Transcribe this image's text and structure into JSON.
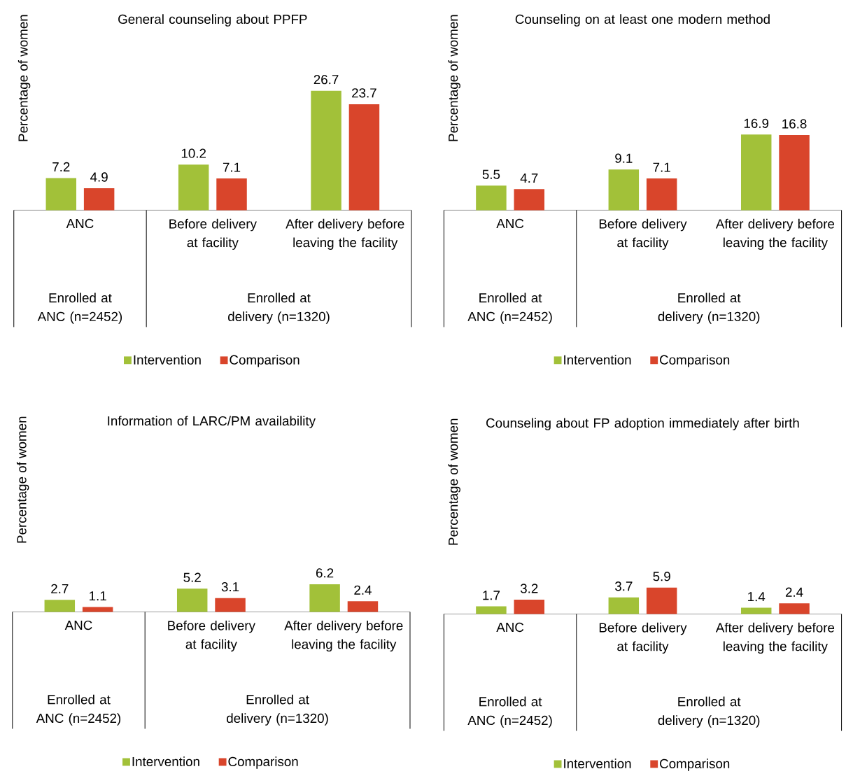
{
  "chart_data": [
    {
      "type": "bar",
      "title": "General counseling about PPFP",
      "ylabel": "Percentage of women",
      "categories": [
        "ANC",
        "Before delivery at facility",
        "After delivery before leaving the facility"
      ],
      "series": [
        {
          "name": "Intervention",
          "color": "#a2c139",
          "values": [
            7.2,
            10.2,
            26.7
          ]
        },
        {
          "name": "Comparison",
          "color": "#d9452b",
          "values": [
            4.9,
            7.1,
            23.7
          ]
        }
      ],
      "data_labels": true,
      "legend": "bottom",
      "annotations": [
        "Enrolled at ANC (n=2452)",
        "Enrolled at delivery (n=1320)"
      ]
    },
    {
      "type": "bar",
      "title": "Counseling on at least one modern method",
      "ylabel": "Percentage of women",
      "categories": [
        "ANC",
        "Before delivery at facility",
        "After delivery before leaving the facility"
      ],
      "series": [
        {
          "name": "Intervention",
          "color": "#a2c139",
          "values": [
            5.5,
            9.1,
            16.9
          ]
        },
        {
          "name": "Comparison",
          "color": "#d9452b",
          "values": [
            4.7,
            7.1,
            16.8
          ]
        }
      ],
      "data_labels": true,
      "legend": "bottom",
      "annotations": [
        "Enrolled at ANC (n=2452)",
        "Enrolled at delivery (n=1320)"
      ]
    },
    {
      "type": "bar",
      "title": "Information of LARC/PM availability",
      "ylabel": "Percentage of women",
      "categories": [
        "ANC",
        "Before delivery at facility",
        "After delivery before leaving the facility"
      ],
      "series": [
        {
          "name": "Intervention",
          "color": "#a2c139",
          "values": [
            2.7,
            5.2,
            6.2
          ]
        },
        {
          "name": "Comparison",
          "color": "#d9452b",
          "values": [
            1.1,
            3.1,
            2.4
          ]
        }
      ],
      "data_labels": true,
      "legend": "bottom",
      "annotations": [
        "Enrolled at ANC (n=2452)",
        "Enrolled at delivery (n=1320)"
      ]
    },
    {
      "type": "bar",
      "title": "Counseling about FP adoption immediately after birth",
      "ylabel": "Percentage of women",
      "categories": [
        "ANC",
        "Before delivery at facility",
        "After delivery before leaving the facility"
      ],
      "series": [
        {
          "name": "Intervention",
          "color": "#a2c139",
          "values": [
            1.7,
            3.7,
            1.4
          ]
        },
        {
          "name": "Comparison",
          "color": "#d9452b",
          "values": [
            3.2,
            5.9,
            2.4
          ]
        }
      ],
      "data_labels": true,
      "legend": "bottom",
      "annotations": [
        "Enrolled at ANC (n=2452)",
        "Enrolled at delivery (n=1320)"
      ]
    }
  ]
}
